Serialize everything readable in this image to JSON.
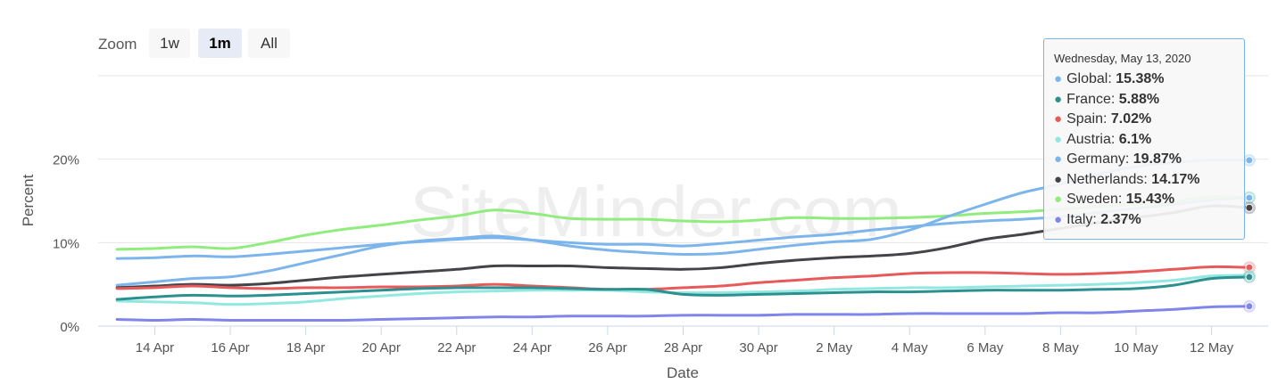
{
  "zoom": {
    "label": "Zoom",
    "buttons": [
      {
        "label": "1w",
        "active": false
      },
      {
        "label": "1m",
        "active": true
      },
      {
        "label": "All",
        "active": false
      }
    ]
  },
  "watermark": "SiteMinder.com",
  "tooltip": {
    "date": "Wednesday, May 13, 2020",
    "rows": [
      {
        "name": "Global",
        "value": "15.38%",
        "color": "#7cb5ec"
      },
      {
        "name": "France",
        "value": "5.88%",
        "color": "#2b908f"
      },
      {
        "name": "Spain",
        "value": "7.02%",
        "color": "#e85a5a"
      },
      {
        "name": "Austria",
        "value": "6.1%",
        "color": "#91e8e1"
      },
      {
        "name": "Germany",
        "value": "19.87%",
        "color": "#7cb5ec"
      },
      {
        "name": "Netherlands",
        "value": "14.17%",
        "color": "#434348"
      },
      {
        "name": "Sweden",
        "value": "15.43%",
        "color": "#90ed7d"
      },
      {
        "name": "Italy",
        "value": "2.37%",
        "color": "#8085e9"
      }
    ]
  },
  "chart_data": {
    "type": "line",
    "xlabel": "Date",
    "ylabel": "Percent",
    "x_ticks": [
      "14 Apr",
      "16 Apr",
      "18 Apr",
      "20 Apr",
      "22 Apr",
      "24 Apr",
      "26 Apr",
      "28 Apr",
      "30 Apr",
      "2 May",
      "4 May",
      "6 May",
      "8 May",
      "10 May",
      "12 May"
    ],
    "y_ticks": [
      "0%",
      "10%",
      "20%"
    ],
    "ylim": [
      0,
      30
    ],
    "x": [
      "13 Apr",
      "14 Apr",
      "15 Apr",
      "16 Apr",
      "17 Apr",
      "18 Apr",
      "19 Apr",
      "20 Apr",
      "21 Apr",
      "22 Apr",
      "23 Apr",
      "24 Apr",
      "25 Apr",
      "26 Apr",
      "27 Apr",
      "28 Apr",
      "29 Apr",
      "30 Apr",
      "1 May",
      "2 May",
      "3 May",
      "4 May",
      "5 May",
      "6 May",
      "7 May",
      "8 May",
      "9 May",
      "10 May",
      "11 May",
      "12 May",
      "13 May"
    ],
    "grid": true,
    "legend": "none",
    "series": [
      {
        "name": "Sweden",
        "color": "#90ed7d",
        "values": [
          9.2,
          9.3,
          9.5,
          9.3,
          10.0,
          10.9,
          11.6,
          12.1,
          12.7,
          13.2,
          13.9,
          13.5,
          12.9,
          12.8,
          12.8,
          12.6,
          12.5,
          12.7,
          13.0,
          12.9,
          12.9,
          13.0,
          13.2,
          13.5,
          13.7,
          14.0,
          14.3,
          14.6,
          14.9,
          15.5,
          15.43
        ]
      },
      {
        "name": "Global",
        "color": "#7cb5ec",
        "values": [
          8.1,
          8.2,
          8.4,
          8.3,
          8.6,
          9.0,
          9.4,
          9.8,
          10.1,
          10.4,
          10.6,
          10.3,
          10.0,
          9.8,
          9.8,
          9.6,
          9.9,
          10.3,
          10.7,
          11.0,
          11.5,
          11.9,
          12.3,
          12.6,
          12.8,
          13.1,
          13.6,
          14.1,
          14.6,
          15.1,
          15.38
        ]
      },
      {
        "name": "Germany",
        "color": "#7cb5ec",
        "values": [
          4.9,
          5.3,
          5.7,
          5.9,
          6.6,
          7.6,
          8.6,
          9.6,
          10.2,
          10.5,
          10.8,
          10.3,
          9.6,
          9.1,
          8.8,
          8.6,
          8.7,
          9.2,
          9.7,
          10.1,
          10.4,
          11.5,
          13.1,
          14.6,
          16.0,
          17.0,
          18.2,
          19.1,
          19.6,
          19.9,
          19.87
        ]
      },
      {
        "name": "Netherlands",
        "color": "#434348",
        "values": [
          4.6,
          4.8,
          5.0,
          4.9,
          5.1,
          5.5,
          5.9,
          6.2,
          6.5,
          6.8,
          7.2,
          7.2,
          7.2,
          7.0,
          6.9,
          6.8,
          7.0,
          7.5,
          7.9,
          8.2,
          8.4,
          8.7,
          9.4,
          10.4,
          11.0,
          11.7,
          12.4,
          13.0,
          13.6,
          14.4,
          14.17
        ]
      },
      {
        "name": "Spain",
        "color": "#e85a5a",
        "values": [
          4.5,
          4.6,
          4.8,
          4.6,
          4.5,
          4.6,
          4.6,
          4.7,
          4.7,
          4.8,
          5.0,
          4.8,
          4.6,
          4.4,
          4.4,
          4.6,
          4.8,
          5.2,
          5.5,
          5.8,
          6.0,
          6.3,
          6.4,
          6.4,
          6.3,
          6.2,
          6.3,
          6.5,
          6.8,
          7.1,
          7.02
        ]
      },
      {
        "name": "Austria",
        "color": "#91e8e1",
        "values": [
          3.0,
          2.9,
          2.8,
          2.6,
          2.7,
          2.9,
          3.3,
          3.6,
          3.9,
          4.1,
          4.2,
          4.3,
          4.3,
          4.3,
          4.1,
          4.0,
          4.0,
          4.1,
          4.2,
          4.4,
          4.5,
          4.6,
          4.6,
          4.7,
          4.8,
          4.9,
          5.0,
          5.2,
          5.5,
          6.0,
          6.1
        ]
      },
      {
        "name": "France",
        "color": "#2b908f",
        "values": [
          3.2,
          3.5,
          3.7,
          3.6,
          3.7,
          3.9,
          4.1,
          4.3,
          4.5,
          4.6,
          4.6,
          4.6,
          4.5,
          4.4,
          4.4,
          3.8,
          3.7,
          3.8,
          3.9,
          4.0,
          4.1,
          4.1,
          4.2,
          4.3,
          4.3,
          4.3,
          4.4,
          4.5,
          4.9,
          5.7,
          5.88
        ]
      },
      {
        "name": "Italy",
        "color": "#8085e9",
        "values": [
          0.8,
          0.7,
          0.8,
          0.7,
          0.7,
          0.7,
          0.7,
          0.8,
          0.9,
          1.0,
          1.1,
          1.1,
          1.2,
          1.2,
          1.2,
          1.3,
          1.3,
          1.3,
          1.4,
          1.4,
          1.4,
          1.5,
          1.5,
          1.5,
          1.5,
          1.6,
          1.6,
          1.8,
          2.0,
          2.3,
          2.37
        ]
      }
    ]
  }
}
